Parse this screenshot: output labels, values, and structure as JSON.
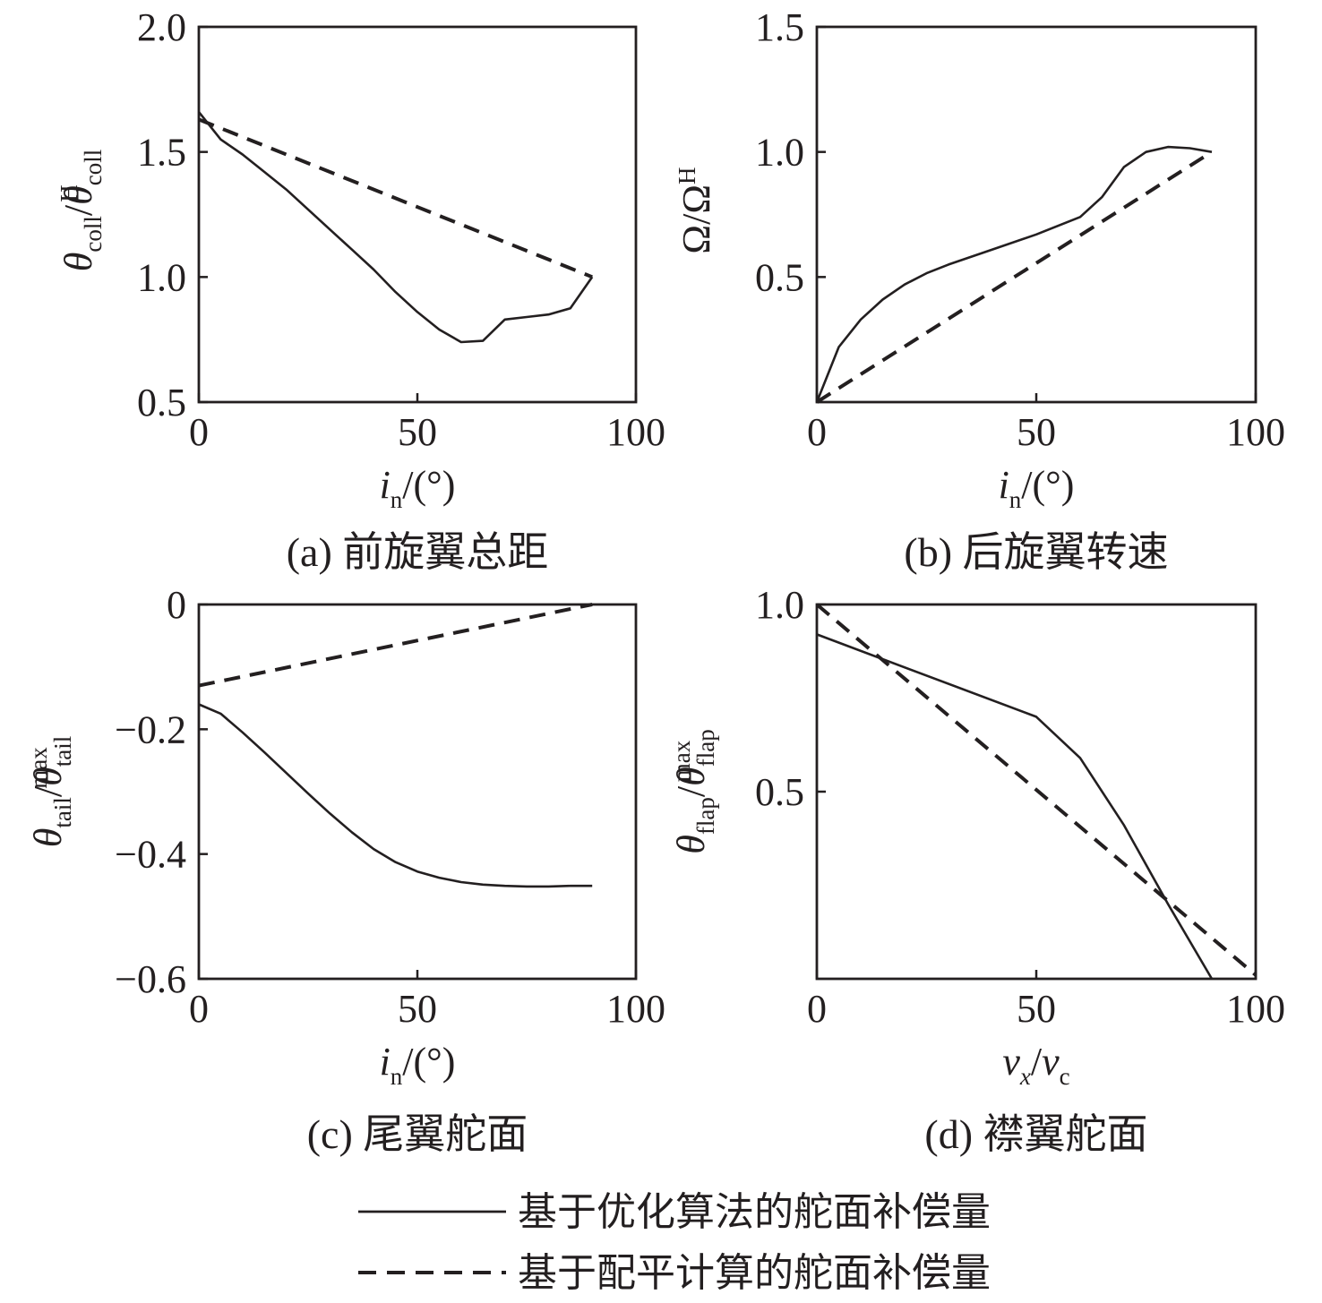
{
  "chart_data": [
    {
      "panel": "a",
      "type": "line",
      "caption": "(a) 前旋翼总距",
      "xlabel": "i_n/(°)",
      "ylabel": "θ_coll/θ_coll^H",
      "xlim": [
        0,
        100
      ],
      "ylim": [
        0.5,
        2.0
      ],
      "xticks": [
        0,
        50,
        100
      ],
      "xtick_labels": [
        "0",
        "50",
        "100"
      ],
      "yticks": [
        0.5,
        1.0,
        1.5,
        2.0
      ],
      "ytick_labels": [
        "0.5",
        "1.0",
        "1.5",
        "2.0"
      ],
      "grid": false,
      "series": [
        {
          "name": "基于优化算法的舵面补偿量",
          "style": "solid",
          "x": [
            0,
            5,
            10,
            15,
            20,
            25,
            30,
            35,
            40,
            45,
            50,
            55,
            60,
            65,
            70,
            75,
            80,
            85,
            90
          ],
          "y": [
            1.66,
            1.55,
            1.49,
            1.42,
            1.35,
            1.27,
            1.19,
            1.11,
            1.03,
            0.94,
            0.86,
            0.79,
            0.74,
            0.745,
            0.83,
            0.84,
            0.85,
            0.875,
            1.0
          ]
        },
        {
          "name": "基于配平计算的舵面补偿量",
          "style": "dashed",
          "x": [
            0,
            90
          ],
          "y": [
            1.63,
            1.0
          ]
        }
      ]
    },
    {
      "panel": "b",
      "type": "line",
      "caption": "(b) 后旋翼转速",
      "xlabel": "i_n/(°)",
      "ylabel": "Ω/Ω^H",
      "xlim": [
        0,
        100
      ],
      "ylim": [
        0,
        1.5
      ],
      "xticks": [
        0,
        50,
        100
      ],
      "xtick_labels": [
        "0",
        "50",
        "100"
      ],
      "yticks": [
        0.5,
        1.0,
        1.5
      ],
      "ytick_labels": [
        "0.5",
        "1.0",
        "1.5"
      ],
      "grid": false,
      "series": [
        {
          "name": "基于优化算法的舵面补偿量",
          "style": "solid",
          "x": [
            0,
            5,
            10,
            15,
            20,
            25,
            30,
            40,
            50,
            60,
            65,
            70,
            75,
            80,
            85,
            90
          ],
          "y": [
            0,
            0.22,
            0.33,
            0.41,
            0.47,
            0.515,
            0.55,
            0.61,
            0.67,
            0.74,
            0.82,
            0.94,
            1.0,
            1.02,
            1.015,
            1.0
          ]
        },
        {
          "name": "基于配平计算的舵面补偿量",
          "style": "dashed",
          "x": [
            0,
            90
          ],
          "y": [
            0,
            1.0
          ]
        }
      ]
    },
    {
      "panel": "c",
      "type": "line",
      "caption": "(c) 尾翼舵面",
      "xlabel": "i_n/(°)",
      "ylabel": "θ_tail/θ_tail^max",
      "xlim": [
        0,
        100
      ],
      "ylim": [
        -0.6,
        0
      ],
      "xticks": [
        0,
        50,
        100
      ],
      "xtick_labels": [
        "0",
        "50",
        "100"
      ],
      "yticks": [
        -0.6,
        -0.4,
        -0.2,
        0
      ],
      "ytick_labels": [
        "−0.6",
        "−0.4",
        "−0.2",
        "0"
      ],
      "grid": false,
      "series": [
        {
          "name": "基于优化算法的舵面补偿量",
          "style": "solid",
          "x": [
            0,
            5,
            10,
            15,
            20,
            25,
            30,
            35,
            40,
            45,
            50,
            55,
            60,
            65,
            70,
            75,
            80,
            85,
            90
          ],
          "y": [
            -0.16,
            -0.175,
            -0.205,
            -0.237,
            -0.27,
            -0.303,
            -0.335,
            -0.365,
            -0.392,
            -0.413,
            -0.428,
            -0.438,
            -0.445,
            -0.449,
            -0.451,
            -0.452,
            -0.452,
            -0.451,
            -0.451
          ]
        },
        {
          "name": "基于配平计算的舵面补偿量",
          "style": "dashed",
          "x": [
            0,
            90
          ],
          "y": [
            -0.13,
            0
          ]
        }
      ]
    },
    {
      "panel": "d",
      "type": "line",
      "caption": "(d) 襟翼舵面",
      "xlabel": "v_x/v_c",
      "ylabel": "θ_flap/θ_flap^max",
      "xlim": [
        0,
        100
      ],
      "ylim": [
        0,
        1.0
      ],
      "xticks": [
        0,
        50,
        100
      ],
      "xtick_labels": [
        "0",
        "50",
        "100"
      ],
      "yticks": [
        0.5,
        1.0
      ],
      "ytick_labels": [
        "0.5",
        "1.0"
      ],
      "grid": false,
      "series": [
        {
          "name": "基于优化算法的舵面补偿量",
          "style": "solid",
          "x": [
            0,
            50,
            60,
            70,
            80,
            90
          ],
          "y": [
            0.92,
            0.7,
            0.59,
            0.41,
            0.2,
            0
          ]
        },
        {
          "name": "基于配平计算的舵面补偿量",
          "style": "dashed",
          "x": [
            0,
            100
          ],
          "y": [
            1.0,
            0.01
          ]
        }
      ]
    }
  ],
  "legend": {
    "placement": "bottom-center",
    "items": [
      {
        "label": "基于优化算法的舵面补偿量",
        "style": "solid"
      },
      {
        "label": "基于配平计算的舵面补偿量",
        "style": "dashed"
      }
    ]
  }
}
